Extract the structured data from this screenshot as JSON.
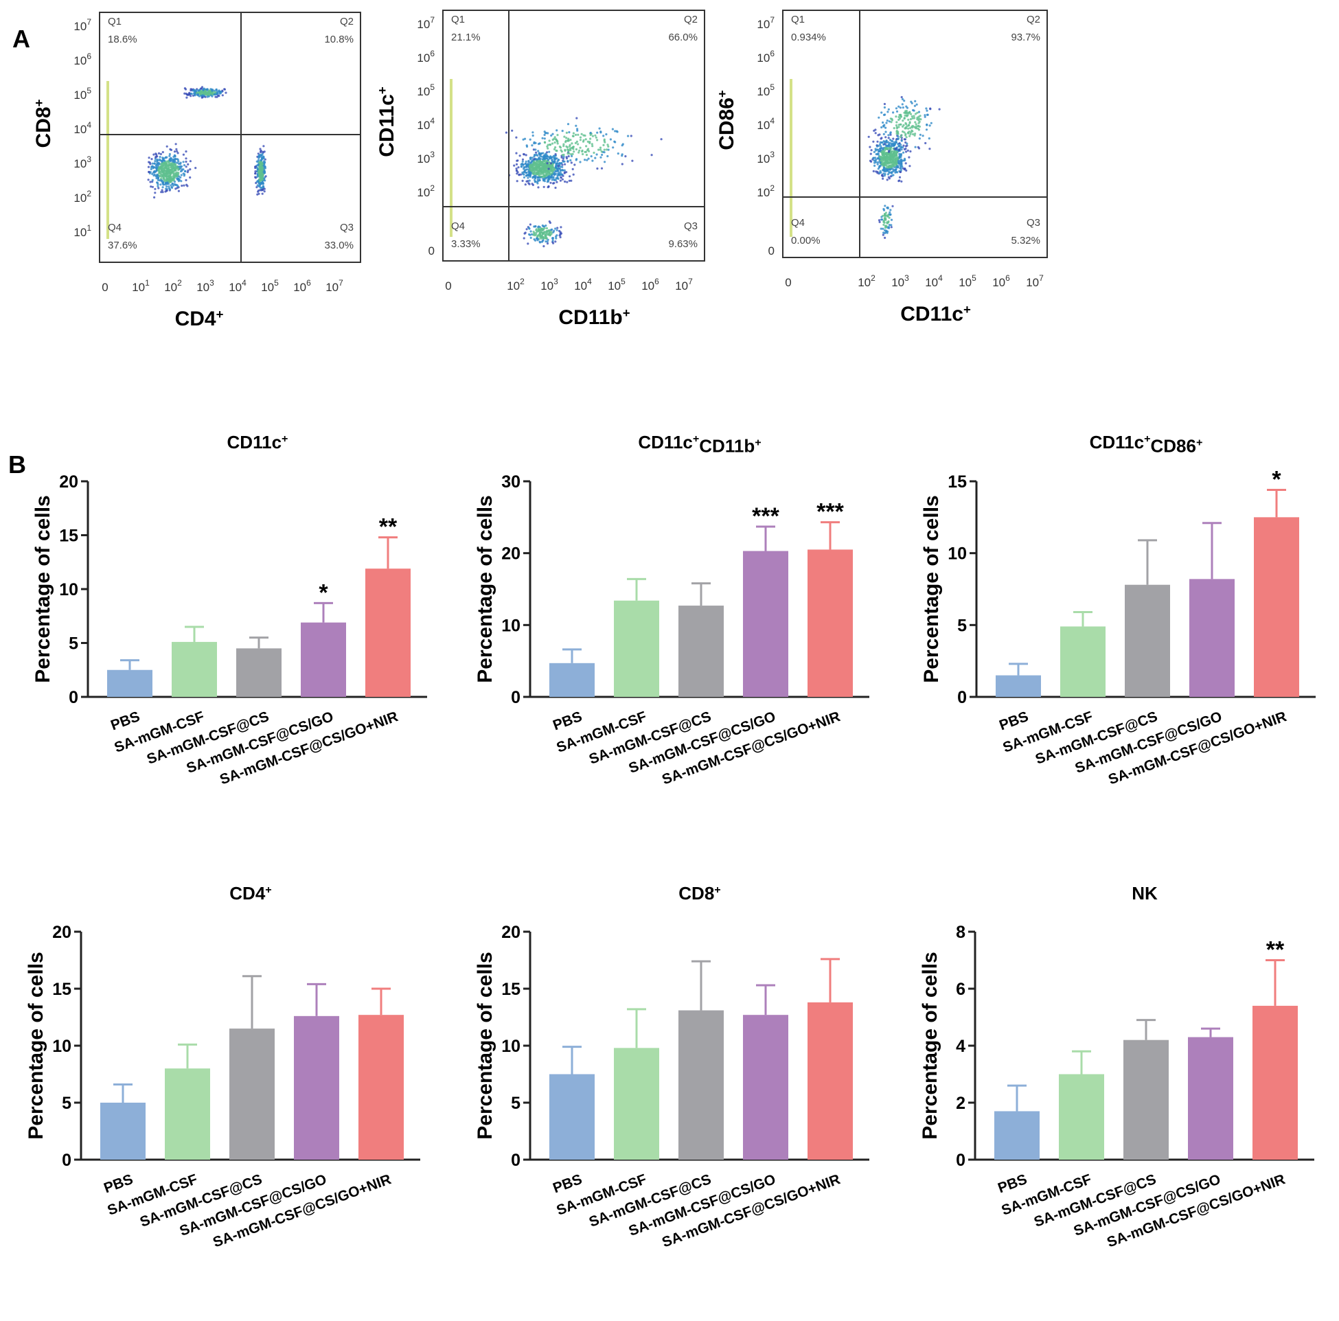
{
  "panel_labels": {
    "a": "A",
    "b": "B"
  },
  "colors": {
    "PBS": "#8DAFD8",
    "SA-mGM-CSF": "#A9DCA9",
    "SA-mGM-CSF@CS": "#A2A2A6",
    "SA-mGM-CSF@CS/GO": "#AD80BB",
    "SA-mGM-CSF@CS/GO+NIR": "#F07E7E",
    "axis": "#222222"
  },
  "flow_plots": [
    {
      "ylabel": "CD8",
      "ylabel_sup": "+",
      "xlabel": "CD4",
      "xlabel_sup": "+",
      "y_ticks": [
        "10",
        "10",
        "10",
        "10",
        "10",
        "10",
        "10"
      ],
      "y_tick_exps": [
        "7",
        "6",
        "5",
        "4",
        "3",
        "2",
        "1"
      ],
      "x_zero": "0",
      "x_ticks": [
        "10",
        "10",
        "10",
        "10",
        "10",
        "10",
        "10"
      ],
      "x_tick_exps": [
        "1",
        "2",
        "3",
        "4",
        "5",
        "6",
        "7"
      ],
      "quadrants": [
        {
          "name": "Q1",
          "pct": "18.6%"
        },
        {
          "name": "Q2",
          "pct": "10.8%"
        },
        {
          "name": "Q3",
          "pct": "33.0%"
        },
        {
          "name": "Q4",
          "pct": "37.6%"
        }
      ]
    },
    {
      "ylabel": "CD11c",
      "ylabel_sup": "+",
      "xlabel": "CD11b",
      "xlabel_sup": "+",
      "y_ticks": [
        "10",
        "10",
        "10",
        "10",
        "10",
        "10",
        "0"
      ],
      "y_tick_exps": [
        "7",
        "6",
        "5",
        "4",
        "3",
        "2",
        ""
      ],
      "x_zero": "0",
      "x_ticks": [
        "10",
        "10",
        "10",
        "10",
        "10",
        "10"
      ],
      "x_tick_exps": [
        "2",
        "3",
        "4",
        "5",
        "6",
        "7"
      ],
      "quadrants": [
        {
          "name": "Q1",
          "pct": "21.1%"
        },
        {
          "name": "Q2",
          "pct": "66.0%"
        },
        {
          "name": "Q3",
          "pct": "9.63%"
        },
        {
          "name": "Q4",
          "pct": "3.33%"
        }
      ]
    },
    {
      "ylabel": "CD86",
      "ylabel_sup": "+",
      "xlabel": "CD11c",
      "xlabel_sup": "+",
      "y_ticks": [
        "10",
        "10",
        "10",
        "10",
        "10",
        "10",
        "0"
      ],
      "y_tick_exps": [
        "7",
        "6",
        "5",
        "4",
        "3",
        "2",
        ""
      ],
      "x_zero": "0",
      "x_ticks": [
        "10",
        "10",
        "10",
        "10",
        "10",
        "10"
      ],
      "x_tick_exps": [
        "2",
        "3",
        "4",
        "5",
        "6",
        "7"
      ],
      "quadrants": [
        {
          "name": "Q1",
          "pct": "0.934%"
        },
        {
          "name": "Q2",
          "pct": "93.7%"
        },
        {
          "name": "Q3",
          "pct": "5.32%"
        },
        {
          "name": "Q4",
          "pct": "0.00%"
        }
      ]
    }
  ],
  "chart_data": [
    {
      "type": "bar",
      "title": "CD11c",
      "title_sup": "+",
      "ylabel": "Percentage of  cells",
      "ylim": [
        0,
        20
      ],
      "yticks": [
        0,
        5,
        10,
        15,
        20
      ],
      "categories": [
        "PBS",
        "SA-mGM-CSF",
        "SA-mGM-CSF@CS",
        "SA-mGM-CSF@CS/GO",
        "SA-mGM-CSF@CS/GO+NIR"
      ],
      "values": [
        2.5,
        5.1,
        4.5,
        6.9,
        11.9
      ],
      "errors": [
        0.9,
        1.4,
        1.0,
        1.8,
        2.9
      ],
      "significance": [
        "",
        "",
        "",
        "*",
        "**"
      ]
    },
    {
      "type": "bar",
      "title": "CD11c",
      "title_sup": "+",
      "title2": "CD11b",
      "title2_sup": "+",
      "ylabel": "Percentage of cells",
      "ylim": [
        0,
        30
      ],
      "yticks": [
        0,
        10,
        20,
        30
      ],
      "categories": [
        "PBS",
        "SA-mGM-CSF",
        "SA-mGM-CSF@CS",
        "SA-mGM-CSF@CS/GO",
        "SA-mGM-CSF@CS/GO+NIR"
      ],
      "values": [
        4.7,
        13.4,
        12.7,
        20.3,
        20.5
      ],
      "errors": [
        1.9,
        3.0,
        3.1,
        3.4,
        3.8
      ],
      "significance": [
        "",
        "",
        "",
        "***",
        "***"
      ]
    },
    {
      "type": "bar",
      "title": "CD11c",
      "title_sup": "+",
      "title2": "CD86",
      "title2_sup": "+",
      "ylabel": "Percentage of cells",
      "ylim": [
        0,
        15
      ],
      "yticks": [
        0,
        5,
        10,
        15
      ],
      "categories": [
        "PBS",
        "SA-mGM-CSF",
        "SA-mGM-CSF@CS",
        "SA-mGM-CSF@CS/GO",
        "SA-mGM-CSF@CS/GO+NIR"
      ],
      "values": [
        1.5,
        4.9,
        7.8,
        8.2,
        12.5
      ],
      "errors": [
        0.8,
        1.0,
        3.1,
        3.9,
        1.9
      ],
      "significance": [
        "",
        "",
        "",
        "",
        "*"
      ]
    },
    {
      "type": "bar",
      "title": "CD4",
      "title_sup": "+",
      "ylabel": "Percentage of  cells",
      "ylim": [
        0,
        20
      ],
      "yticks": [
        0,
        5,
        10,
        15,
        20
      ],
      "categories": [
        "PBS",
        "SA-mGM-CSF",
        "SA-mGM-CSF@CS",
        "SA-mGM-CSF@CS/GO",
        "SA-mGM-CSF@CS/GO+NIR"
      ],
      "values": [
        5.0,
        8.0,
        11.5,
        12.6,
        12.7
      ],
      "errors": [
        1.6,
        2.1,
        4.6,
        2.8,
        2.3
      ],
      "significance": [
        "",
        "",
        "",
        "",
        ""
      ]
    },
    {
      "type": "bar",
      "title": "CD8",
      "title_sup": "+",
      "ylabel": "Percentage of cells",
      "ylim": [
        0,
        20
      ],
      "yticks": [
        0,
        5,
        10,
        15,
        20
      ],
      "categories": [
        "PBS",
        "SA-mGM-CSF",
        "SA-mGM-CSF@CS",
        "SA-mGM-CSF@CS/GO",
        "SA-mGM-CSF@CS/GO+NIR"
      ],
      "values": [
        7.5,
        9.8,
        13.1,
        12.7,
        13.8
      ],
      "errors": [
        2.4,
        3.4,
        4.3,
        2.6,
        3.8
      ],
      "significance": [
        "",
        "",
        "",
        "",
        ""
      ]
    },
    {
      "type": "bar",
      "title": "NK",
      "ylabel": "Percentage of  cells",
      "ylim": [
        0,
        8
      ],
      "yticks": [
        0,
        2,
        4,
        6,
        8
      ],
      "categories": [
        "PBS",
        "SA-mGM-CSF",
        "SA-mGM-CSF@CS",
        "SA-mGM-CSF@CS/GO",
        "SA-mGM-CSF@CS/GO+NIR"
      ],
      "values": [
        1.7,
        3.0,
        4.2,
        4.3,
        5.4
      ],
      "errors": [
        0.9,
        0.8,
        0.7,
        0.3,
        1.6
      ],
      "significance": [
        "",
        "",
        "",
        "",
        "**"
      ]
    }
  ]
}
